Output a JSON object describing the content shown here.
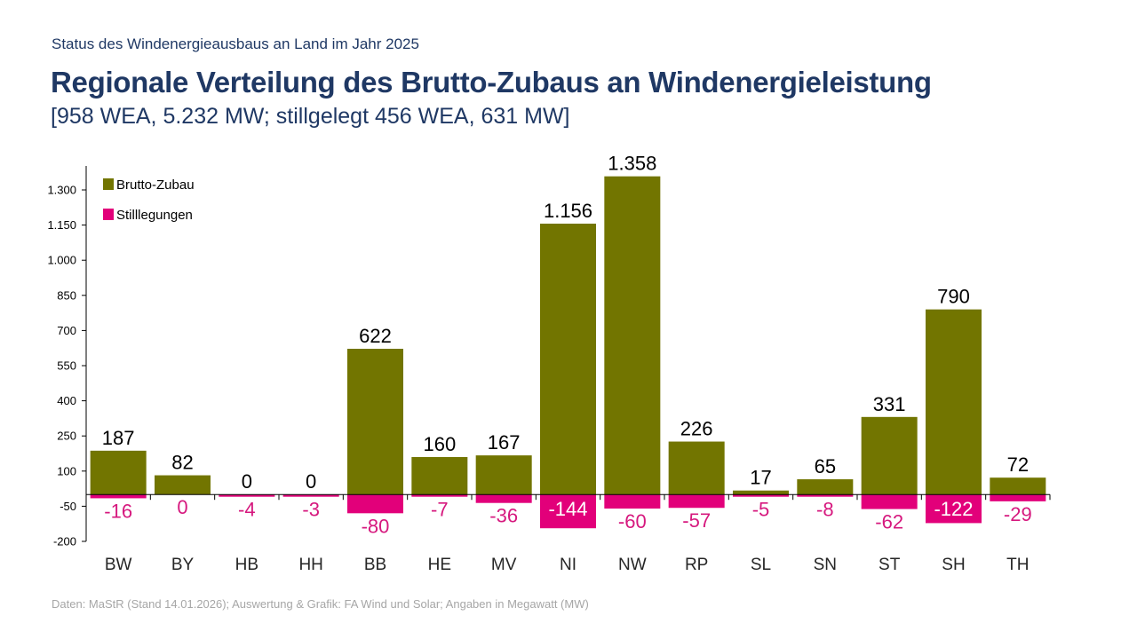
{
  "header": {
    "kicker": "Status des Windenergieausbaus an Land im Jahr 2025",
    "title": "Regionale Verteilung des Brutto-Zubaus an Windenergieleistung",
    "subtitle": "[958 WEA, 5.232 MW; stillgelegt 456 WEA, 631 MW]"
  },
  "footer": "Daten: MaStR (Stand 14.01.2026); Auswertung & Grafik: FA Wind und Solar; Angaben in Megawatt (MW)",
  "chart_data": {
    "type": "bar",
    "categories": [
      "BW",
      "BY",
      "HB",
      "HH",
      "BB",
      "HE",
      "MV",
      "NI",
      "NW",
      "RP",
      "SL",
      "SN",
      "ST",
      "SH",
      "TH"
    ],
    "series": [
      {
        "name": "Brutto-Zubau",
        "color": "#727500",
        "values": [
          187,
          82,
          0,
          0,
          622,
          160,
          167,
          1156,
          1358,
          226,
          17,
          65,
          331,
          790,
          72
        ],
        "labels": [
          "187",
          "82",
          "0",
          "0",
          "622",
          "160",
          "167",
          "1.156",
          "1.358",
          "226",
          "17",
          "65",
          "331",
          "790",
          "72"
        ]
      },
      {
        "name": "Stilllegungen",
        "color": "#e2007a",
        "values": [
          -16,
          0,
          -4,
          -3,
          -80,
          -7,
          -36,
          -144,
          -60,
          -57,
          -5,
          -8,
          -62,
          -122,
          -29
        ],
        "labels": [
          "-16",
          "0",
          "-4",
          "-3",
          "-80",
          "-7",
          "-36",
          "-144",
          "-60",
          "-57",
          "-5",
          "-8",
          "-62",
          "-122",
          "-29"
        ]
      }
    ],
    "yticks": [
      -200,
      -50,
      100,
      250,
      400,
      550,
      700,
      850,
      1000,
      1150,
      1300
    ],
    "ytick_labels": [
      "-200",
      "-50",
      "100",
      "250",
      "400",
      "550",
      "700",
      "850",
      "1.000",
      "1.150",
      "1.300"
    ],
    "ylim": [
      -200,
      1300
    ],
    "legend": "top-left",
    "grid": false
  }
}
